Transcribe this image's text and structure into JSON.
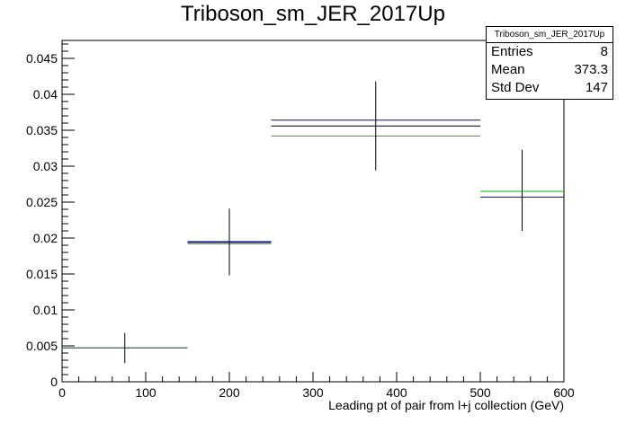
{
  "chart_data": {
    "type": "histogram",
    "title": "Triboson_sm_JER_2017Up",
    "xlabel": "Leading pt of pair from l+j collection (GeV)",
    "ylabel": "",
    "xlim": [
      0,
      600
    ],
    "ylim": [
      0,
      0.0475
    ],
    "xticks": [
      0,
      100,
      200,
      300,
      400,
      500,
      600
    ],
    "yticks": [
      0,
      0.005,
      0.01,
      0.015,
      0.02,
      0.025,
      0.03,
      0.035,
      0.04,
      0.045
    ],
    "ytick_labels": [
      "0",
      "0.005",
      "0.01",
      "0.015",
      "0.02",
      "0.025",
      "0.03",
      "0.035",
      "0.04",
      "0.045"
    ],
    "bins": [
      {
        "low": 0,
        "high": 150,
        "center": 75,
        "value": 0.0047,
        "err_low": 0.0026,
        "err_high": 0.0068
      },
      {
        "low": 150,
        "high": 250,
        "center": 200,
        "value": 0.0194,
        "err_low": 0.0148,
        "err_high": 0.0241
      },
      {
        "low": 250,
        "high": 500,
        "center": 375,
        "value": 0.0356,
        "err_low": 0.0294,
        "err_high": 0.0418
      },
      {
        "low": 500,
        "high": 600,
        "center": 550,
        "value": 0.0265,
        "err_low": 0.021,
        "err_high": 0.0323
      }
    ],
    "series": [
      {
        "color": "#000000",
        "values": [
          0.0047,
          0.0194,
          0.0356,
          0.0265
        ]
      },
      {
        "color": "#0000cc",
        "values": [
          0.0047,
          0.0195,
          0.0364,
          0.0257
        ]
      },
      {
        "color": "#00bb00",
        "values": [
          0.0047,
          0.0192,
          0.0342,
          0.0265
        ]
      }
    ],
    "stats": {
      "name": "Triboson_sm_JER_2017Up",
      "rows": [
        {
          "label": "Entries",
          "value": "8"
        },
        {
          "label": "Mean",
          "value": "373.3"
        },
        {
          "label": "Std Dev",
          "value": "147"
        }
      ]
    }
  }
}
